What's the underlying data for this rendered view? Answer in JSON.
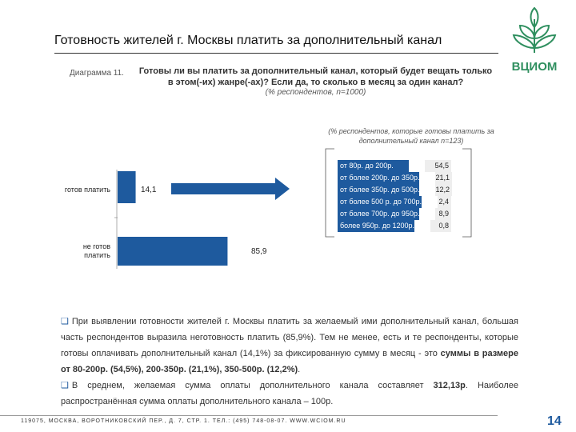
{
  "header": {
    "title": "Готовность жителей г. Москвы платить за дополнительный канал",
    "logo_text": "ВЦИОМ",
    "diagram_caption": "Диаграмма 11.",
    "question": "Готовы ли вы платить за дополнительный канал, который будет вещать только в этом(-их) жанре(-ах)? Если да, то сколько в месяц за один канал?",
    "subtitle": "(% респондентов, n=1000)"
  },
  "chart_data": [
    {
      "type": "bar",
      "categories": [
        "готов платить",
        "не готов платить"
      ],
      "values": [
        14.1,
        85.9
      ],
      "value_labels": [
        "14,1",
        "85,9"
      ],
      "title": "",
      "xlabel": "",
      "ylabel": "",
      "orientation": "horizontal",
      "colors": [
        "#1e5a9e"
      ],
      "grid": false
    },
    {
      "type": "table",
      "title": "(% респондентов, которые готовы платить за дополнительный канал n=123)",
      "categories": [
        "от 80р. до 200р.",
        "от более 200р. до 350р.",
        "от более 350р. до 500р.",
        "от более 500 р. до 700р.",
        "от более 700р. до 950р.",
        "более 950р. до 1200р."
      ],
      "values": [
        54.5,
        21.1,
        12.2,
        2.4,
        8.9,
        0.8
      ],
      "value_labels": [
        "54,5",
        "21,1",
        "12,2",
        "2,4",
        "8,9",
        "0,8"
      ]
    }
  ],
  "body": {
    "p1_a": "При выявлении готовности жителей г. Москвы платить за желаемый ими дополнительный канал, большая часть респондентов выразила неготовность платить (85,9%). Тем не менее, есть и те респонденты, которые готовы оплачивать дополнительный канал (14,1%) за фиксированную сумму в месяц - это ",
    "p1_b": "суммы в размере от 80-200р. (54,5%), 200-350р. (21,1%), 350-500р. (12,2%)",
    "p1_c": ".",
    "p2_a": "В среднем, желаемая сумма оплаты дополнительного канала составляет ",
    "p2_b": "312,13р",
    "p2_c": ". Наиболее распространённая сумма оплаты дополнительного канала – 100р."
  },
  "footer": {
    "address": "119075, МОСКВА, ВОРОТНИКОВСКИЙ ПЕР., Д. 7, СТР. 1. ТЕЛ.: (495) 748-08-07. WWW.WCIOM.RU",
    "page_number": "14"
  },
  "colors": {
    "bar": "#1e5a9e",
    "accent": "#1e5a9e",
    "logo": "#2f8f5f"
  }
}
